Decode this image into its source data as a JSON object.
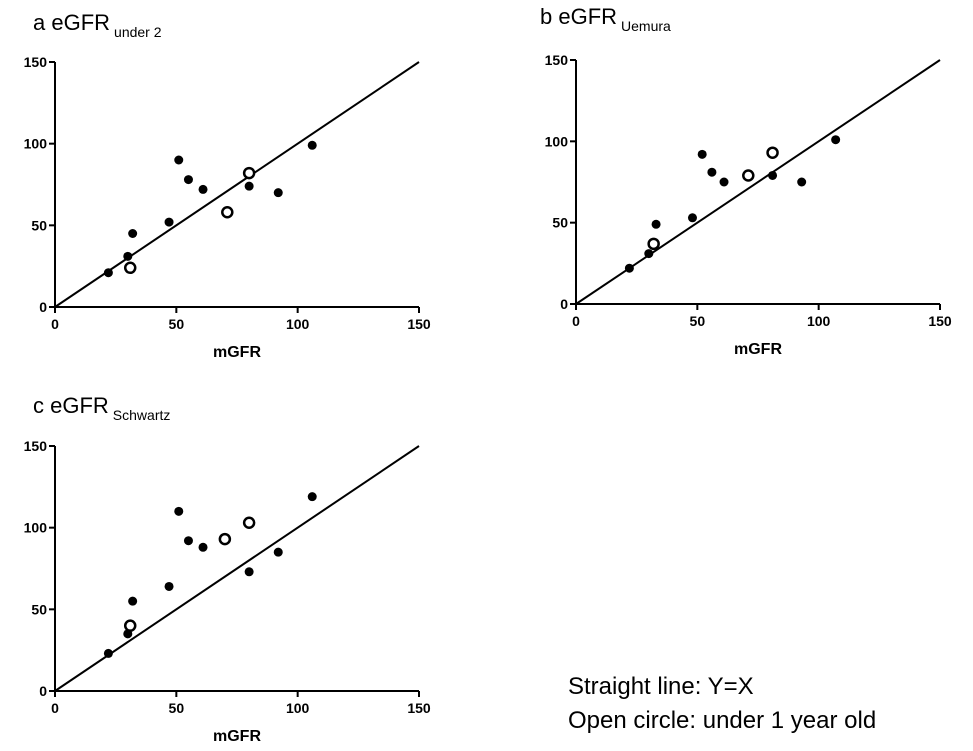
{
  "chart_data": [
    {
      "type": "scatter",
      "panel_letter": "a",
      "title": "eGFR",
      "title_subscript": "under 2",
      "xlabel": "mGFR",
      "ylabel": "",
      "xlim": [
        0,
        150
      ],
      "ylim": [
        0,
        150
      ],
      "xticks": [
        "0",
        "50",
        "100",
        "150"
      ],
      "yticks": [
        "0",
        "50",
        "100",
        "150"
      ],
      "reference_line": "Y=X",
      "series": [
        {
          "marker": "filled-circle",
          "points": [
            [
              22,
              21
            ],
            [
              30,
              31
            ],
            [
              32,
              45
            ],
            [
              47,
              52
            ],
            [
              51,
              90
            ],
            [
              55,
              78
            ],
            [
              61,
              72
            ],
            [
              80,
              74
            ],
            [
              92,
              70
            ],
            [
              106,
              99
            ]
          ]
        },
        {
          "marker": "open-circle",
          "points": [
            [
              31,
              24
            ],
            [
              71,
              58
            ],
            [
              80,
              82
            ]
          ]
        }
      ]
    },
    {
      "type": "scatter",
      "panel_letter": "b",
      "title": "eGFR",
      "title_subscript": "Uemura",
      "xlabel": "mGFR",
      "ylabel": "",
      "xlim": [
        0,
        150
      ],
      "ylim": [
        0,
        150
      ],
      "xticks": [
        "0",
        "50",
        "100",
        "150"
      ],
      "yticks": [
        "0",
        "50",
        "100",
        "150"
      ],
      "reference_line": "Y=X",
      "series": [
        {
          "marker": "filled-circle",
          "points": [
            [
              22,
              22
            ],
            [
              30,
              31
            ],
            [
              33,
              49
            ],
            [
              48,
              53
            ],
            [
              52,
              92
            ],
            [
              56,
              81
            ],
            [
              61,
              75
            ],
            [
              81,
              79
            ],
            [
              93,
              75
            ],
            [
              107,
              101
            ]
          ]
        },
        {
          "marker": "open-circle",
          "points": [
            [
              32,
              37
            ],
            [
              71,
              79
            ],
            [
              81,
              93
            ]
          ]
        }
      ]
    },
    {
      "type": "scatter",
      "panel_letter": "c",
      "title": "eGFR",
      "title_subscript": "Schwartz",
      "xlabel": "mGFR",
      "ylabel": "",
      "xlim": [
        0,
        150
      ],
      "ylim": [
        0,
        150
      ],
      "xticks": [
        "0",
        "50",
        "100",
        "150"
      ],
      "yticks": [
        "0",
        "50",
        "100",
        "150"
      ],
      "reference_line": "Y=X",
      "series": [
        {
          "marker": "filled-circle",
          "points": [
            [
              22,
              23
            ],
            [
              30,
              35
            ],
            [
              32,
              55
            ],
            [
              47,
              64
            ],
            [
              51,
              110
            ],
            [
              55,
              92
            ],
            [
              61,
              88
            ],
            [
              80,
              73
            ],
            [
              92,
              85
            ],
            [
              106,
              119
            ]
          ]
        },
        {
          "marker": "open-circle",
          "points": [
            [
              31,
              40
            ],
            [
              70,
              93
            ],
            [
              80,
              103
            ]
          ]
        }
      ]
    }
  ],
  "legend": {
    "line1": "Straight line: Y=X",
    "line2": "Open circle: under 1 year old"
  }
}
